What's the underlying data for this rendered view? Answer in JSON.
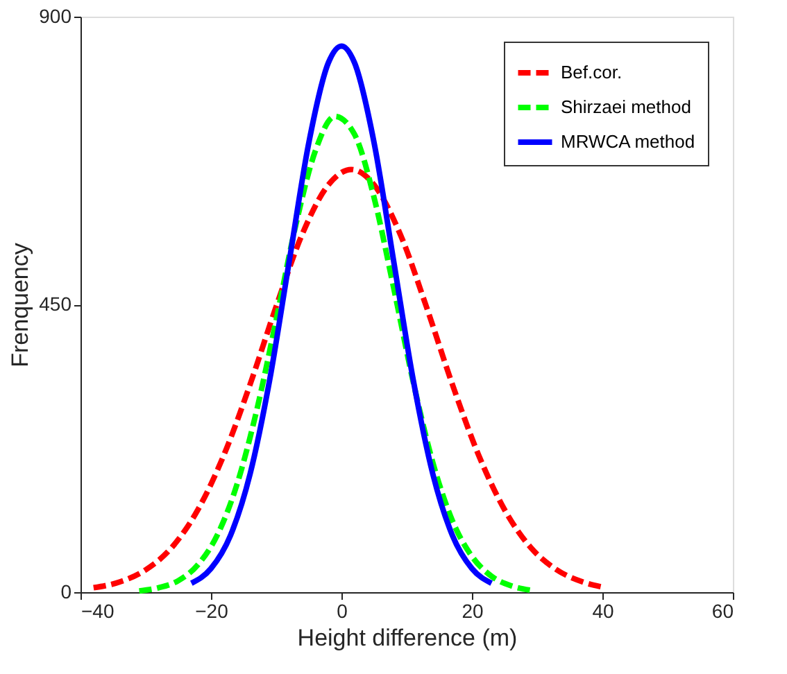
{
  "chart_data": {
    "type": "line",
    "xlabel": "Height difference (m)",
    "ylabel": "Frenquency",
    "xlim": [
      -40,
      60
    ],
    "xticks": [
      -40,
      -20,
      0,
      20,
      40,
      60
    ],
    "ylim": [
      0,
      900
    ],
    "yticks": [
      0,
      450,
      900
    ],
    "grid": false,
    "legend": "top right",
    "marker": "none",
    "series": [
      {
        "name": "Bef.cor.",
        "color": "#ff0000",
        "line_style": "dashed",
        "x": [
          -38,
          -34,
          -30,
          -26,
          -22,
          -18,
          -14,
          -10,
          -6,
          -2,
          1.5,
          5,
          9,
          13,
          17,
          21,
          25,
          29,
          33,
          37,
          40
        ],
        "values": [
          7,
          16,
          35,
          70,
          129,
          215,
          325,
          447,
          560,
          637,
          661,
          637,
          560,
          447,
          325,
          215,
          129,
          70,
          35,
          16,
          8
        ]
      },
      {
        "name": "Shirzaei method",
        "color": "#00ff00",
        "line_style": "dashed",
        "x": [
          -31,
          -28,
          -25,
          -22,
          -19,
          -16,
          -13,
          -10,
          -7,
          -4,
          -1,
          2,
          5,
          8,
          11,
          14,
          17,
          20,
          23,
          26,
          29
        ],
        "values": [
          2,
          7,
          18,
          43,
          90,
          169,
          284,
          426,
          574,
          690,
          744,
          716,
          617,
          476,
          329,
          203,
          112,
          56,
          25,
          10,
          3
        ]
      },
      {
        "name": "MRWCA method",
        "color": "#0000ff",
        "line_style": "solid",
        "x": [
          -23,
          -20,
          -17,
          -14,
          -11,
          -8,
          -5,
          -2,
          0,
          2,
          5,
          8,
          11,
          14,
          17,
          20,
          23
        ],
        "values": [
          14,
          37,
          89,
          185,
          332,
          518,
          703,
          828,
          854,
          828,
          703,
          518,
          332,
          185,
          89,
          37,
          14
        ]
      }
    ]
  }
}
